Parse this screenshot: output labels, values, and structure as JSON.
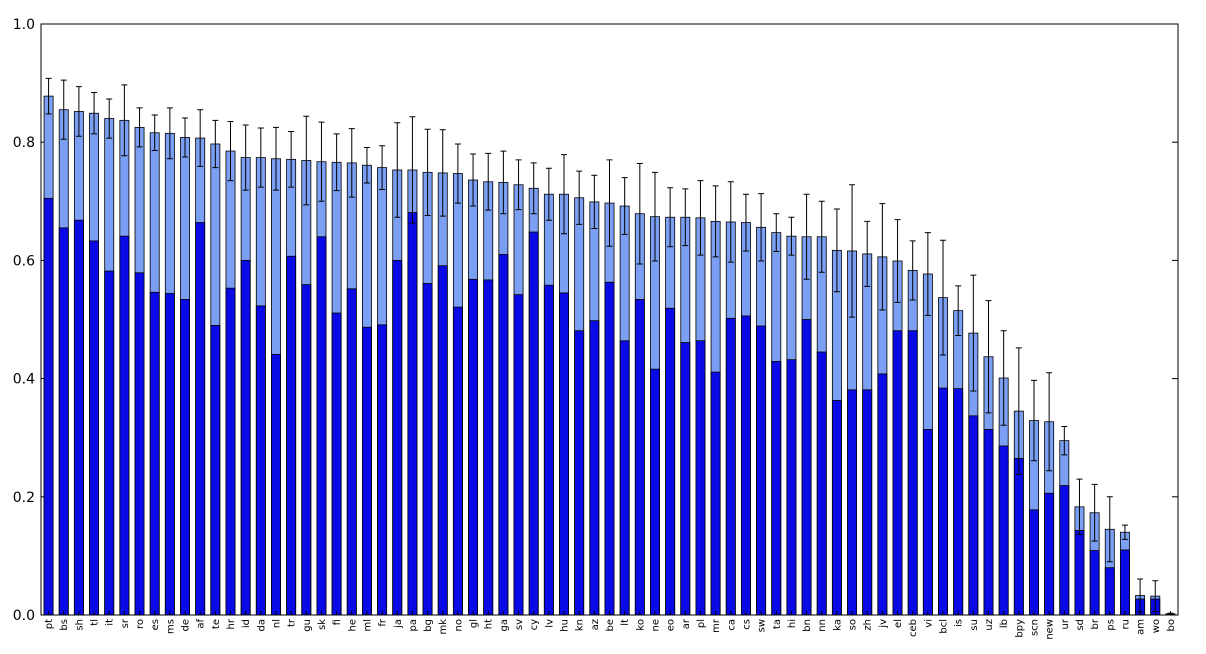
{
  "chart_data": {
    "type": "bar",
    "categories": [
      "pt",
      "bs",
      "sh",
      "tl",
      "it",
      "sr",
      "ro",
      "es",
      "ms",
      "de",
      "af",
      "te",
      "hr",
      "id",
      "da",
      "nl",
      "tr",
      "gu",
      "sk",
      "fi",
      "he",
      "ml",
      "fr",
      "ja",
      "pa",
      "bg",
      "mk",
      "no",
      "gl",
      "ht",
      "ga",
      "sv",
      "cy",
      "lv",
      "hu",
      "kn",
      "az",
      "be",
      "lt",
      "ko",
      "ne",
      "eo",
      "ar",
      "pl",
      "mr",
      "ca",
      "cs",
      "sw",
      "ta",
      "hi",
      "bn",
      "nn",
      "ka",
      "so",
      "zh",
      "jv",
      "el",
      "ceb",
      "vi",
      "bcl",
      "is",
      "su",
      "uz",
      "lb",
      "bpy",
      "scn",
      "new",
      "ur",
      "sd",
      "br",
      "ps",
      "ru",
      "am",
      "wo",
      "bo"
    ],
    "series": [
      {
        "color": "#7b9ff2",
        "values": [
          0.878,
          0.855,
          0.852,
          0.849,
          0.84,
          0.837,
          0.825,
          0.816,
          0.815,
          0.808,
          0.807,
          0.797,
          0.785,
          0.774,
          0.774,
          0.772,
          0.771,
          0.769,
          0.767,
          0.766,
          0.765,
          0.761,
          0.757,
          0.753,
          0.753,
          0.749,
          0.748,
          0.747,
          0.736,
          0.733,
          0.732,
          0.728,
          0.722,
          0.712,
          0.712,
          0.706,
          0.699,
          0.697,
          0.692,
          0.679,
          0.674,
          0.673,
          0.673,
          0.672,
          0.666,
          0.665,
          0.664,
          0.656,
          0.647,
          0.641,
          0.64,
          0.64,
          0.617,
          0.616,
          0.611,
          0.606,
          0.599,
          0.583,
          0.577,
          0.537,
          0.515,
          0.477,
          0.437,
          0.401,
          0.345,
          0.329,
          0.327,
          0.295,
          0.183,
          0.173,
          0.145,
          0.14,
          0.033,
          0.032,
          0.002
        ],
        "errors": [
          0.03,
          0.05,
          0.042,
          0.035,
          0.033,
          0.06,
          0.033,
          0.03,
          0.043,
          0.033,
          0.048,
          0.04,
          0.05,
          0.055,
          0.05,
          0.053,
          0.047,
          0.075,
          0.067,
          0.048,
          0.058,
          0.03,
          0.037,
          0.08,
          0.09,
          0.073,
          0.073,
          0.05,
          0.044,
          0.048,
          0.053,
          0.042,
          0.043,
          0.044,
          0.067,
          0.045,
          0.045,
          0.073,
          0.048,
          0.085,
          0.075,
          0.05,
          0.048,
          0.063,
          0.06,
          0.068,
          0.048,
          0.057,
          0.032,
          0.032,
          0.072,
          0.06,
          0.07,
          0.112,
          0.055,
          0.09,
          0.07,
          0.05,
          0.07,
          0.097,
          0.042,
          0.098,
          0.095,
          0.08,
          0.107,
          0.068,
          0.083,
          0.024,
          0.047,
          0.048,
          0.055,
          0.012,
          0.028,
          0.026,
          0.001
        ]
      },
      {
        "color": "#0a0ae6",
        "values": [
          0.705,
          0.655,
          0.668,
          0.633,
          0.582,
          0.641,
          0.579,
          0.546,
          0.544,
          0.534,
          0.664,
          0.49,
          0.553,
          0.6,
          0.523,
          0.441,
          0.607,
          0.559,
          0.64,
          0.511,
          0.552,
          0.487,
          0.491,
          0.6,
          0.681,
          0.561,
          0.591,
          0.521,
          0.568,
          0.567,
          0.61,
          0.542,
          0.648,
          0.558,
          0.545,
          0.481,
          0.498,
          0.563,
          0.464,
          0.534,
          0.416,
          0.519,
          0.461,
          0.464,
          0.411,
          0.502,
          0.506,
          0.489,
          0.429,
          0.432,
          0.5,
          0.445,
          0.363,
          0.381,
          0.381,
          0.408,
          0.481,
          0.481,
          0.314,
          0.384,
          0.383,
          0.337,
          0.314,
          0.286,
          0.265,
          0.178,
          0.206,
          0.219,
          0.143,
          0.109,
          0.08,
          0.11,
          0.027,
          0.027,
          0.001
        ]
      }
    ],
    "ylim": [
      0,
      1
    ],
    "yticks": [
      {
        "value": 0,
        "label": "0.0"
      },
      0.2,
      0.4,
      0.6,
      0.8,
      {
        "value": 1,
        "label": "1.0"
      }
    ]
  }
}
